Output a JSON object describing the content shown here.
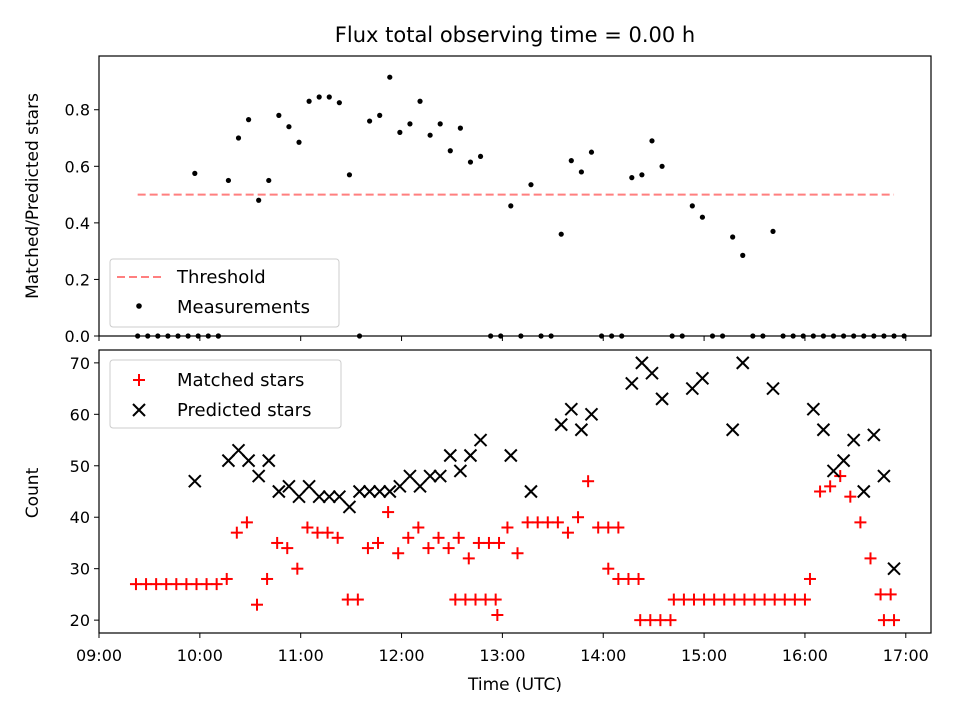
{
  "chart_data": [
    {
      "type": "scatter",
      "title": "Flux total observing time = 0.00 h",
      "xlabel": "",
      "ylabel": "Matched/Predicted stars",
      "xlim": [
        "09:00",
        "17:15"
      ],
      "ylim": [
        0,
        0.99
      ],
      "yticks": [
        0.0,
        0.2,
        0.4,
        0.6,
        0.8
      ],
      "ytick_labels": [
        "0.0",
        "0.2",
        "0.4",
        "0.6",
        "0.8"
      ],
      "grid": false,
      "legend": {
        "placement": "lower-left",
        "entries": [
          "Threshold",
          "Measurements"
        ]
      },
      "threshold": {
        "name": "Threshold",
        "value": 0.5,
        "x_start": "09:23",
        "x_end": "16:53",
        "color": "#ff7f7f",
        "style": "dashed"
      },
      "series": [
        {
          "name": "Measurements",
          "color": "#000000",
          "marker": "dot",
          "points": [
            [
              "09:23",
              0
            ],
            [
              "09:29",
              0
            ],
            [
              "09:35",
              0
            ],
            [
              "09:41",
              0
            ],
            [
              "09:47",
              0
            ],
            [
              "09:53",
              0
            ],
            [
              "09:59",
              0
            ],
            [
              "10:05",
              0
            ],
            [
              "10:11",
              0
            ],
            [
              "09:57",
              0.575
            ],
            [
              "10:11",
              0.0
            ],
            [
              "10:17",
              0.55
            ],
            [
              "10:23",
              0.7
            ],
            [
              "10:29",
              0.765
            ],
            [
              "10:35",
              0.48
            ],
            [
              "10:41",
              0.55
            ],
            [
              "10:47",
              0.78
            ],
            [
              "10:53",
              0.74
            ],
            [
              "10:59",
              0.685
            ],
            [
              "11:05",
              0.83
            ],
            [
              "11:11",
              0.845
            ],
            [
              "11:17",
              0.845
            ],
            [
              "11:23",
              0.825
            ],
            [
              "11:29",
              0.57
            ],
            [
              "11:35",
              0.0
            ],
            [
              "11:41",
              0.76
            ],
            [
              "11:47",
              0.78
            ],
            [
              "11:53",
              0.915
            ],
            [
              "11:59",
              0.72
            ],
            [
              "12:05",
              0.75
            ],
            [
              "12:11",
              0.83
            ],
            [
              "12:17",
              0.71
            ],
            [
              "12:23",
              0.75
            ],
            [
              "12:29",
              0.655
            ],
            [
              "12:35",
              0.735
            ],
            [
              "12:41",
              0.615
            ],
            [
              "12:47",
              0.635
            ],
            [
              "12:53",
              0.0
            ],
            [
              "12:59",
              0.0
            ],
            [
              "13:05",
              0.46
            ],
            [
              "13:11",
              0.0
            ],
            [
              "13:17",
              0.535
            ],
            [
              "13:23",
              0.0
            ],
            [
              "13:29",
              0.0
            ],
            [
              "13:35",
              0.36
            ],
            [
              "13:41",
              0.62
            ],
            [
              "13:47",
              0.58
            ],
            [
              "13:53",
              0.65
            ],
            [
              "13:59",
              0.0
            ],
            [
              "14:05",
              0.0
            ],
            [
              "14:11",
              0.0
            ],
            [
              "14:17",
              0.56
            ],
            [
              "14:23",
              0.57
            ],
            [
              "14:29",
              0.69
            ],
            [
              "14:35",
              0.6
            ],
            [
              "14:41",
              0.0
            ],
            [
              "14:47",
              0.0
            ],
            [
              "14:53",
              0.46
            ],
            [
              "14:59",
              0.42
            ],
            [
              "15:05",
              0.0
            ],
            [
              "15:11",
              0.0
            ],
            [
              "15:17",
              0.35
            ],
            [
              "15:23",
              0.285
            ],
            [
              "15:29",
              0.0
            ],
            [
              "15:35",
              0.0
            ],
            [
              "15:41",
              0.37
            ],
            [
              "15:47",
              0.0
            ],
            [
              "15:53",
              0.0
            ],
            [
              "15:59",
              0.0
            ],
            [
              "16:05",
              0.0
            ],
            [
              "16:11",
              0.0
            ],
            [
              "16:17",
              0.0
            ],
            [
              "16:23",
              0.0
            ],
            [
              "16:29",
              0.0
            ],
            [
              "16:35",
              0.0
            ],
            [
              "16:41",
              0.0
            ],
            [
              "16:47",
              0.0
            ],
            [
              "16:53",
              0.0
            ],
            [
              "16:59",
              0.0
            ]
          ]
        }
      ]
    },
    {
      "type": "scatter",
      "title": "",
      "xlabel": "Time (UTC)",
      "ylabel": "Count",
      "xlim": [
        "09:00",
        "17:15"
      ],
      "ylim": [
        17.5,
        72.5
      ],
      "xticks": [
        "09:00",
        "10:00",
        "11:00",
        "12:00",
        "13:00",
        "14:00",
        "15:00",
        "16:00",
        "17:00"
      ],
      "yticks": [
        20,
        30,
        40,
        50,
        60,
        70
      ],
      "ytick_labels": [
        "20",
        "30",
        "40",
        "50",
        "60",
        "70"
      ],
      "grid": false,
      "legend": {
        "placement": "upper-left",
        "entries": [
          "Matched stars",
          "Predicted stars"
        ]
      },
      "series": [
        {
          "name": "Matched stars",
          "color": "#ff0000",
          "marker": "plus",
          "points": [
            [
              "09:22",
              27
            ],
            [
              "09:28",
              27
            ],
            [
              "09:34",
              27
            ],
            [
              "09:40",
              27
            ],
            [
              "09:46",
              27
            ],
            [
              "09:52",
              27
            ],
            [
              "09:58",
              27
            ],
            [
              "10:04",
              27
            ],
            [
              "10:10",
              27
            ],
            [
              "10:16",
              28
            ],
            [
              "10:22",
              37
            ],
            [
              "10:28",
              39
            ],
            [
              "10:34",
              23
            ],
            [
              "10:40",
              28
            ],
            [
              "10:46",
              35
            ],
            [
              "10:52",
              34
            ],
            [
              "10:58",
              30
            ],
            [
              "11:04",
              38
            ],
            [
              "11:10",
              37
            ],
            [
              "11:16",
              37
            ],
            [
              "11:22",
              36
            ],
            [
              "11:28",
              24
            ],
            [
              "11:34",
              24
            ],
            [
              "11:40",
              34
            ],
            [
              "11:46",
              35
            ],
            [
              "11:52",
              41
            ],
            [
              "11:58",
              33
            ],
            [
              "12:04",
              36
            ],
            [
              "12:10",
              38
            ],
            [
              "12:16",
              34
            ],
            [
              "12:22",
              36
            ],
            [
              "12:28",
              34
            ],
            [
              "12:34",
              36
            ],
            [
              "12:40",
              32
            ],
            [
              "12:46",
              35
            ],
            [
              "12:52",
              35
            ],
            [
              "12:58",
              35
            ],
            [
              "12:32",
              24
            ],
            [
              "12:38",
              24
            ],
            [
              "12:44",
              24
            ],
            [
              "12:50",
              24
            ],
            [
              "12:56",
              24
            ],
            [
              "12:57",
              21
            ],
            [
              "13:03",
              38
            ],
            [
              "13:09",
              33
            ],
            [
              "13:15",
              39
            ],
            [
              "13:21",
              39
            ],
            [
              "13:27",
              39
            ],
            [
              "13:33",
              39
            ],
            [
              "13:39",
              37
            ],
            [
              "13:45",
              40
            ],
            [
              "13:51",
              47
            ],
            [
              "13:57",
              38
            ],
            [
              "14:03",
              38
            ],
            [
              "14:09",
              38
            ],
            [
              "14:03",
              30
            ],
            [
              "14:09",
              28
            ],
            [
              "14:15",
              28
            ],
            [
              "14:21",
              28
            ],
            [
              "14:22",
              20
            ],
            [
              "14:28",
              20
            ],
            [
              "14:34",
              20
            ],
            [
              "14:40",
              20
            ],
            [
              "14:42",
              24
            ],
            [
              "14:48",
              24
            ],
            [
              "14:54",
              24
            ],
            [
              "15:00",
              24
            ],
            [
              "15:06",
              24
            ],
            [
              "15:12",
              24
            ],
            [
              "15:18",
              24
            ],
            [
              "15:24",
              24
            ],
            [
              "15:30",
              24
            ],
            [
              "15:36",
              24
            ],
            [
              "15:42",
              24
            ],
            [
              "15:48",
              24
            ],
            [
              "15:54",
              24
            ],
            [
              "16:00",
              24
            ],
            [
              "16:03",
              28
            ],
            [
              "16:09",
              45
            ],
            [
              "16:15",
              46
            ],
            [
              "16:21",
              48
            ],
            [
              "16:27",
              44
            ],
            [
              "16:33",
              39
            ],
            [
              "16:39",
              32
            ],
            [
              "16:45",
              25
            ],
            [
              "16:51",
              25
            ],
            [
              "16:47",
              20
            ],
            [
              "16:53",
              20
            ]
          ]
        },
        {
          "name": "Predicted stars",
          "color": "#000000",
          "marker": "x",
          "points": [
            [
              "09:57",
              47
            ],
            [
              "10:17",
              51
            ],
            [
              "10:23",
              53
            ],
            [
              "10:29",
              51
            ],
            [
              "10:35",
              48
            ],
            [
              "10:41",
              51
            ],
            [
              "10:47",
              45
            ],
            [
              "10:53",
              46
            ],
            [
              "10:59",
              44
            ],
            [
              "11:05",
              46
            ],
            [
              "11:11",
              44
            ],
            [
              "11:17",
              44
            ],
            [
              "11:23",
              44
            ],
            [
              "11:29",
              42
            ],
            [
              "11:35",
              45
            ],
            [
              "11:41",
              45
            ],
            [
              "11:47",
              45
            ],
            [
              "11:53",
              45
            ],
            [
              "11:59",
              46
            ],
            [
              "12:05",
              48
            ],
            [
              "12:11",
              46
            ],
            [
              "12:17",
              48
            ],
            [
              "12:23",
              48
            ],
            [
              "12:29",
              52
            ],
            [
              "12:35",
              49
            ],
            [
              "12:41",
              52
            ],
            [
              "12:47",
              55
            ],
            [
              "13:05",
              52
            ],
            [
              "13:17",
              45
            ],
            [
              "13:35",
              58
            ],
            [
              "13:41",
              61
            ],
            [
              "13:47",
              57
            ],
            [
              "13:53",
              60
            ],
            [
              "14:17",
              66
            ],
            [
              "14:23",
              70
            ],
            [
              "14:29",
              68
            ],
            [
              "14:35",
              63
            ],
            [
              "14:53",
              65
            ],
            [
              "14:59",
              67
            ],
            [
              "15:17",
              57
            ],
            [
              "15:23",
              70
            ],
            [
              "15:41",
              65
            ],
            [
              "16:05",
              61
            ],
            [
              "16:11",
              57
            ],
            [
              "16:17",
              49
            ],
            [
              "16:23",
              51
            ],
            [
              "16:29",
              55
            ],
            [
              "16:35",
              45
            ],
            [
              "16:41",
              56
            ],
            [
              "16:47",
              48
            ],
            [
              "16:53",
              30
            ]
          ]
        }
      ]
    }
  ]
}
